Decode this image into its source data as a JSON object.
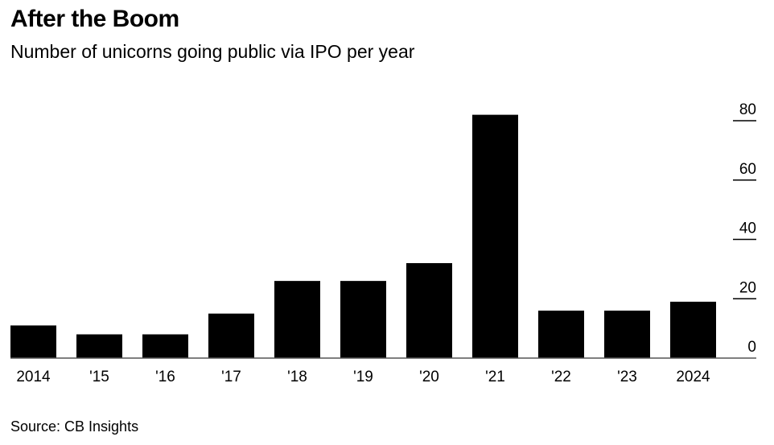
{
  "header": {
    "title": "After the Boom",
    "subtitle": "Number of unicorns going public via IPO per year"
  },
  "footer": {
    "source": "Source: CB Insights"
  },
  "colors": {
    "bar": "#000000",
    "axis": "#555555",
    "background": "#ffffff"
  },
  "chart_data": {
    "type": "bar",
    "title": "After the Boom",
    "subtitle": "Number of unicorns going public via IPO per year",
    "categories": [
      "2014",
      "'15",
      "'16",
      "'17",
      "'18",
      "'19",
      "'20",
      "'21",
      "'22",
      "'23",
      "2024"
    ],
    "values": [
      11,
      8,
      8,
      15,
      26,
      26,
      32,
      82,
      16,
      16,
      19
    ],
    "xlabel": "",
    "ylabel": "",
    "ylim": [
      0,
      80
    ],
    "yticks": [
      0,
      20,
      40,
      60,
      80
    ],
    "ytick_labels": [
      "0",
      "20",
      "40",
      "60",
      "80"
    ],
    "yaxis_side": "right",
    "grid": false,
    "legend": null,
    "source": "Source: CB Insights"
  }
}
